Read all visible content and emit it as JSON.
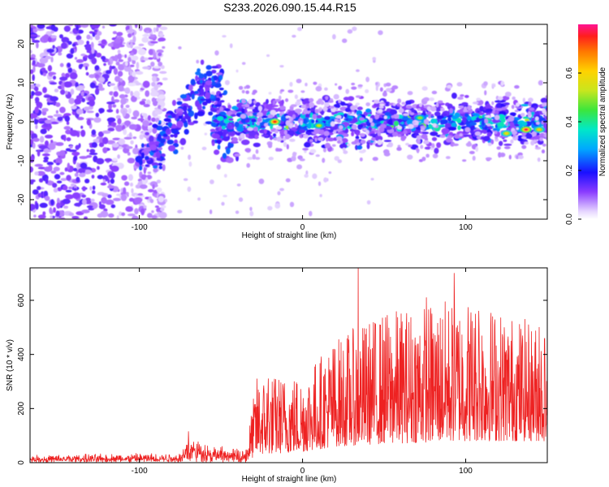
{
  "figure_title": "S233.2026.090.15.44.R15",
  "chart_data": [
    {
      "type": "heatmap",
      "title": "S233.2026.090.15.44.R15",
      "xlabel": "Height of straight line (km)",
      "ylabel": "Frequency (Hz)",
      "xlim": [
        -167,
        150
      ],
      "ylim": [
        -25,
        25
      ],
      "xticks": [
        -100,
        0,
        100
      ],
      "yticks": [
        -20,
        -10,
        0,
        10,
        20
      ],
      "xtick_labels": [
        "-100",
        "0",
        "100"
      ],
      "ytick_labels": [
        "-20",
        "-10",
        "0",
        "10",
        "20"
      ],
      "colorbar": {
        "label": "Normalized spectral amplitude",
        "range": [
          0,
          0.8
        ],
        "ticks": [
          0,
          0.2,
          0.4,
          0.6
        ],
        "tick_labels": [
          "0.0",
          "0.2",
          "0.4",
          "0.6"
        ]
      },
      "noise_region_x": [
        -167,
        -95
      ],
      "signal_band": {
        "x": [
          -95,
          150
        ],
        "center_freq_hz": 0,
        "half_width_hz": 4
      },
      "hot_spots": [
        {
          "x": -17,
          "y": 0,
          "v": 0.75
        },
        {
          "x": 10,
          "y": -1,
          "v": 0.55
        },
        {
          "x": 72,
          "y": 1,
          "v": 0.5
        },
        {
          "x": 125,
          "y": -3,
          "v": 0.6
        },
        {
          "x": 137,
          "y": -2,
          "v": 0.78
        },
        {
          "x": 145,
          "y": -2,
          "v": 0.6
        }
      ],
      "branch_arc": {
        "x_start": -95,
        "y_start": -10,
        "x_peak": -55,
        "y_peak": 12,
        "x_end": -45,
        "y_end": -8
      }
    },
    {
      "type": "line",
      "title": "",
      "xlabel": "Height of straight line (km)",
      "ylabel": "SNR (10 * v/v)",
      "xlim": [
        -167,
        150
      ],
      "ylim": [
        0,
        720
      ],
      "xticks": [
        -100,
        0,
        100
      ],
      "yticks": [
        0,
        200,
        400,
        600
      ],
      "xtick_labels": [
        "-100",
        "0",
        "100"
      ],
      "ytick_labels": [
        "0",
        "200",
        "400",
        "600"
      ],
      "series": [
        {
          "name": "SNR",
          "color": "#ee2222",
          "envelope": [
            {
              "x": -167,
              "lo": 0,
              "hi": 30
            },
            {
              "x": -75,
              "lo": 0,
              "hi": 40
            },
            {
              "x": -70,
              "lo": 0,
              "hi": 115
            },
            {
              "x": -55,
              "lo": 0,
              "hi": 70
            },
            {
              "x": -35,
              "lo": 0,
              "hi": 50
            },
            {
              "x": -28,
              "lo": 30,
              "hi": 320
            },
            {
              "x": 0,
              "lo": 40,
              "hi": 330
            },
            {
              "x": 20,
              "lo": 60,
              "hi": 460
            },
            {
              "x": 50,
              "lo": 70,
              "hi": 560
            },
            {
              "x": 100,
              "lo": 80,
              "hi": 620
            },
            {
              "x": 150,
              "lo": 80,
              "hi": 500
            }
          ],
          "peaks": [
            {
              "x": 34,
              "y": 720
            },
            {
              "x": 93,
              "y": 700
            },
            {
              "x": 76,
              "y": 610
            },
            {
              "x": 145,
              "y": 500
            },
            {
              "x": 108,
              "y": 560
            },
            {
              "x": -21,
              "y": 310
            },
            {
              "x": -70,
              "y": 115
            }
          ]
        }
      ]
    }
  ],
  "colors": {
    "line": "#ee2222",
    "frame": "#000000"
  }
}
